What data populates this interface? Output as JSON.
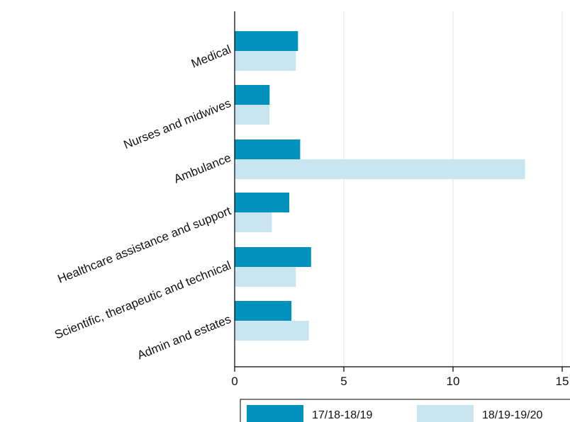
{
  "chart_data": {
    "type": "bar",
    "orientation": "horizontal",
    "categories": [
      "Medical",
      "Nurses and midwives",
      "Ambulance",
      "Healthcare assistance and support",
      "Scientific, therapeutic and technical",
      "Admin and estates"
    ],
    "series": [
      {
        "name": "17/18-18/19",
        "color": "#0092bc",
        "values": [
          2.9,
          1.6,
          3.0,
          2.5,
          3.5,
          2.6
        ]
      },
      {
        "name": "18/19-19/20",
        "color": "#c9e6f0",
        "values": [
          2.8,
          1.6,
          13.3,
          1.7,
          2.8,
          3.4
        ]
      }
    ],
    "xlim": [
      0,
      15
    ],
    "xticks": [
      "0",
      "5",
      "10",
      "15"
    ],
    "xlabel": "",
    "ylabel": "",
    "title": "",
    "grid": "vertical",
    "legend": "bottom"
  }
}
